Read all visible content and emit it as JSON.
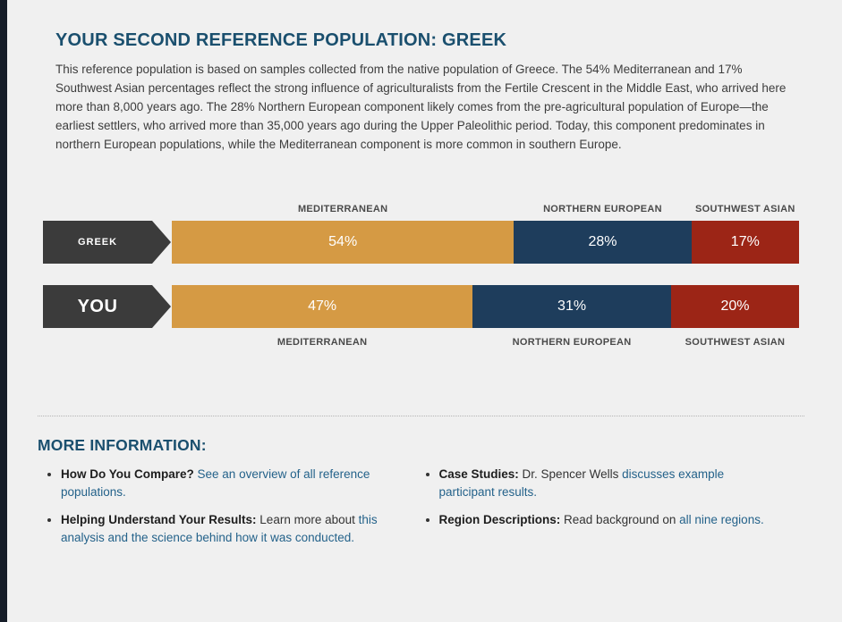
{
  "edge": {
    "strip_color": "#161d28"
  },
  "header": {
    "title": "YOUR SECOND REFERENCE POPULATION: GREEK",
    "description": "This reference population is based on samples collected from the native population of Greece. The 54% Mediterranean and 17% Southwest Asian percentages reflect the strong influence of agriculturalists from the Fertile Crescent in the Middle East, who arrived here more than 8,000 years ago. The 28% Northern European component likely comes from the pre-agricultural population of Europe—the earliest settlers, who arrived more than 35,000 years ago during the Upper Paleolithic period. Today, this component predominates in northern European populations, while the Mediterranean component is more common in southern Europe."
  },
  "chart_data": {
    "type": "bar",
    "orientation": "horizontal-stacked",
    "categories": [
      "MEDITERRANEAN",
      "NORTHERN EUROPEAN",
      "SOUTHWEST ASIAN"
    ],
    "category_keys": [
      "mediterranean",
      "northern-european",
      "southwest-asian"
    ],
    "segment_colors": [
      "#d59a44",
      "#1e3d5c",
      "#9c2516"
    ],
    "row_label_color": "#3b3b3b",
    "value_suffix": "%",
    "series": [
      {
        "name": "GREEK",
        "values": [
          54,
          28,
          17
        ]
      },
      {
        "name": "YOU",
        "values": [
          47,
          31,
          20
        ]
      }
    ]
  },
  "more_information": {
    "heading": "MORE INFORMATION:",
    "items": [
      {
        "label": "How Do You Compare?",
        "pre": "",
        "link": "See an overview of all reference populations."
      },
      {
        "label": "Helping Understand Your Results:",
        "pre": "Learn more about",
        "link": "this analysis and the science behind how it was conducted."
      },
      {
        "label": "Case Studies:",
        "pre": "Dr. Spencer Wells",
        "link": "discusses example participant results."
      },
      {
        "label": "Region Descriptions:",
        "pre": "Read background on",
        "link": "all nine regions."
      }
    ]
  }
}
